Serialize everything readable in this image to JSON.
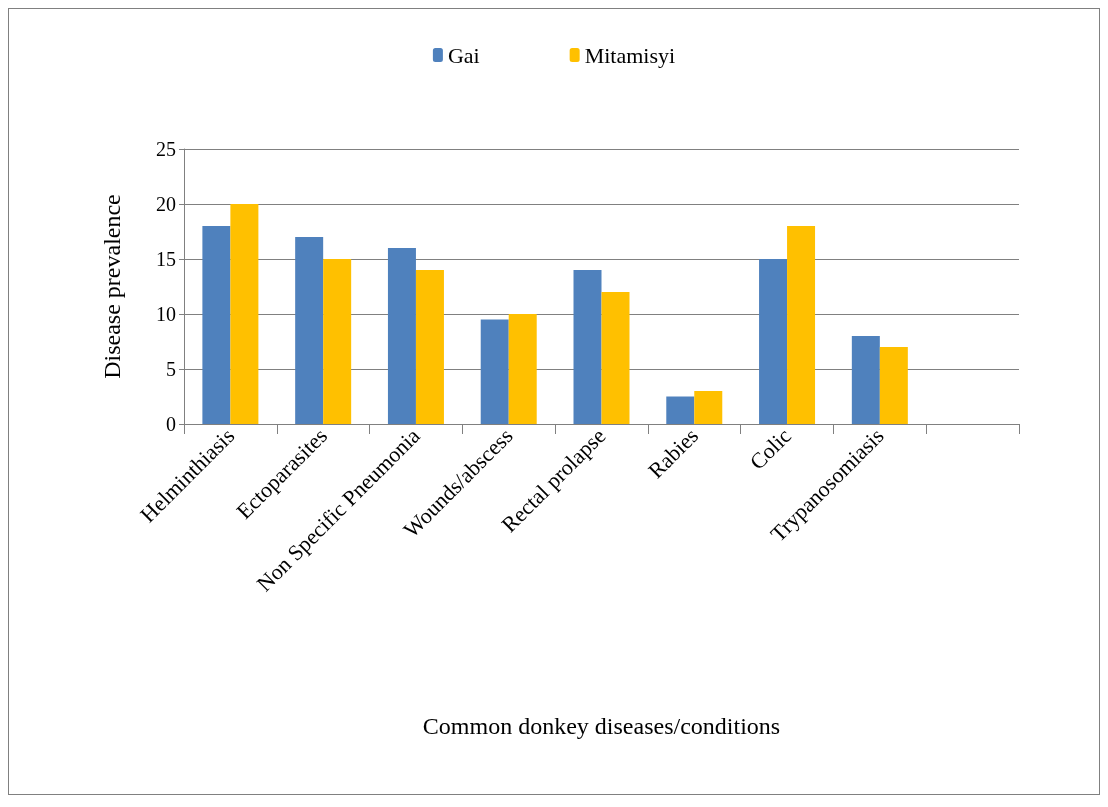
{
  "chart_data": {
    "type": "bar",
    "xlabel": "Common donkey diseases/conditions",
    "ylabel": "Disease prevalence",
    "categories": [
      "Helminthiasis",
      "Ectoparasites",
      "Non Specific Pneumonia",
      "Wounds/abscess",
      "Rectal prolapse",
      "Rabies",
      "Colic",
      "Trypanosomiasis",
      null
    ],
    "series": [
      {
        "name": "Gai",
        "color": "#4f81bd",
        "values": [
          18,
          17,
          16,
          9.5,
          14,
          2.5,
          15,
          8,
          null
        ]
      },
      {
        "name": "Mitamisyi",
        "color": "#ffc000",
        "values": [
          20,
          15,
          14,
          10,
          12,
          3,
          18,
          7,
          null
        ]
      }
    ],
    "ylim": [
      0,
      25
    ],
    "yticks": [
      0,
      5,
      10,
      15,
      20,
      25
    ],
    "grid": "y",
    "legend": "top"
  }
}
